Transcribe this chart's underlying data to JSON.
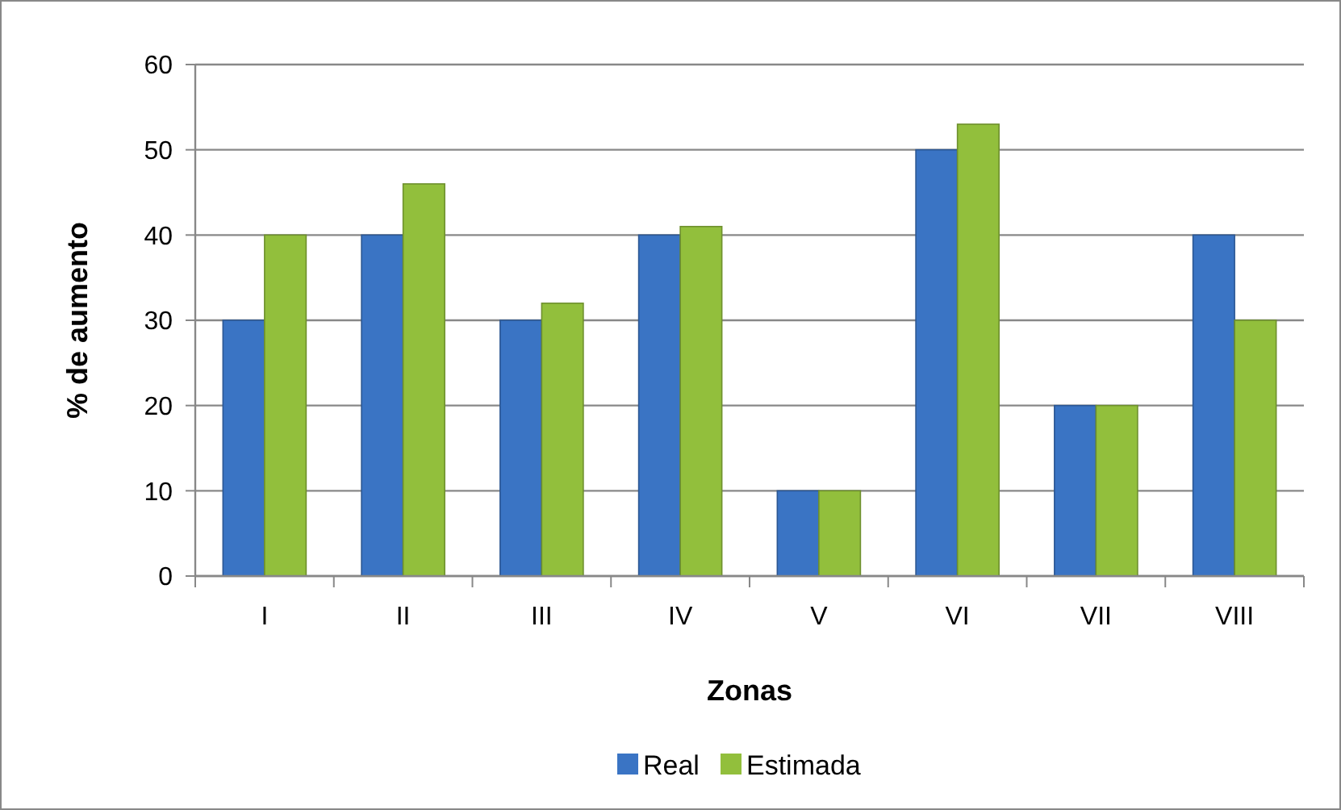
{
  "chart_data": {
    "type": "bar",
    "xlabel": "Zonas",
    "ylabel": "% de aumento",
    "categories": [
      "I",
      "II",
      "III",
      "IV",
      "V",
      "VI",
      "VII",
      "VIII"
    ],
    "series": [
      {
        "name": "Real",
        "color": "#3a74c4",
        "values": [
          30,
          40,
          30,
          40,
          10,
          50,
          20,
          40
        ]
      },
      {
        "name": "Estimada",
        "color": "#92bf3c",
        "values": [
          40,
          46,
          32,
          41,
          10,
          53,
          20,
          30
        ]
      }
    ],
    "ylim": [
      0,
      60
    ],
    "yticks": [
      0,
      10,
      20,
      30,
      40,
      50,
      60
    ],
    "grid": "y",
    "legend": "bottom"
  }
}
